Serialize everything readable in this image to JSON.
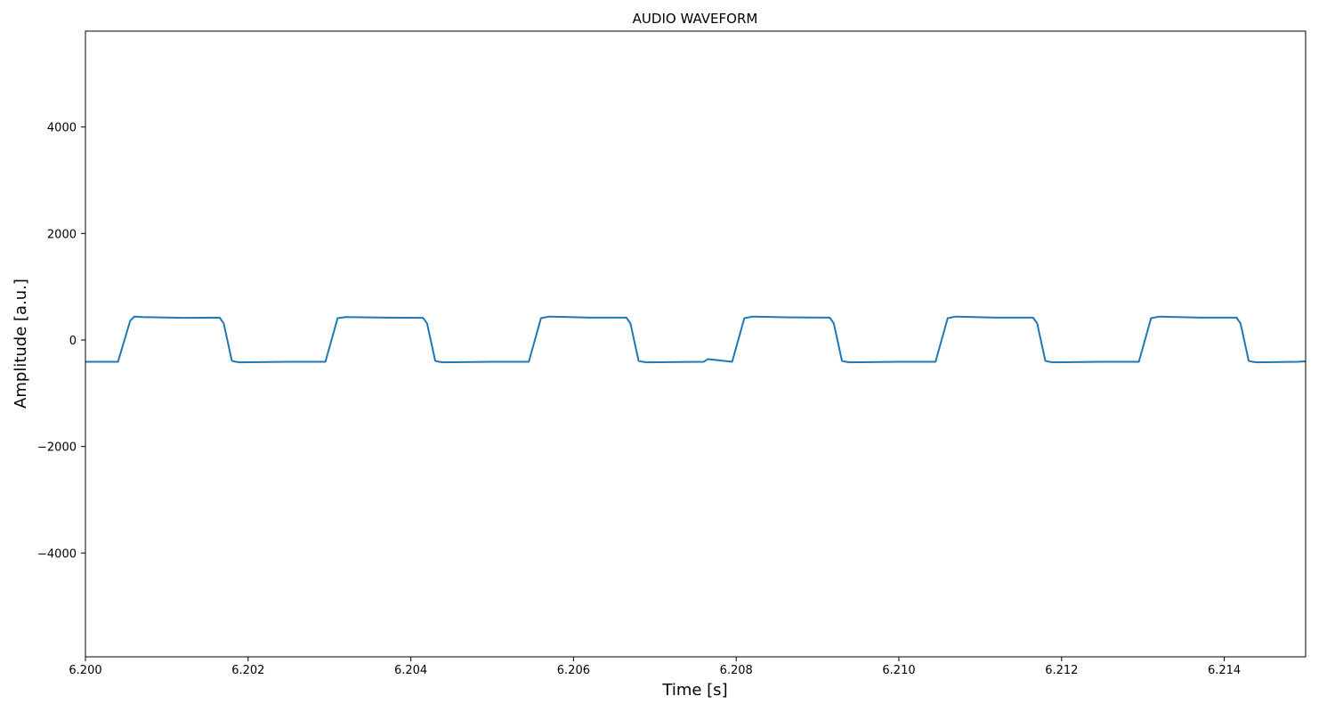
{
  "chart_data": {
    "type": "line",
    "title": "AUDIO WAVEFORM",
    "xlabel": "Time [s]",
    "ylabel": "Amplitude [a.u.]",
    "xlim": [
      6.2,
      6.215
    ],
    "ylim": [
      -5950,
      5800
    ],
    "x_ticks": [
      6.2,
      6.202,
      6.204,
      6.206,
      6.208,
      6.21,
      6.212,
      6.214
    ],
    "x_tick_labels": [
      "6.200",
      "6.202",
      "6.204",
      "6.206",
      "6.208",
      "6.210",
      "6.212",
      "6.214"
    ],
    "y_ticks": [
      -4000,
      -2000,
      0,
      2000,
      4000
    ],
    "y_tick_labels": [
      "−4000",
      "−2000",
      "0",
      "2000",
      "4000"
    ],
    "grid": false,
    "line_color": "#1f77b4",
    "series": [
      {
        "x": [
          6.2,
          6.2004,
          6.20055,
          6.2006,
          6.2007,
          6.2012,
          6.20165,
          6.2017,
          6.2018,
          6.20185,
          6.2019,
          6.2025,
          6.20295,
          6.2031,
          6.2032,
          6.2037,
          6.20415,
          6.2042,
          6.2043,
          6.20435,
          6.2044,
          6.205,
          6.20545,
          6.2056,
          6.2057,
          6.2062,
          6.20665,
          6.2067,
          6.2068,
          6.20685,
          6.2069,
          6.2076,
          6.20765,
          6.20795,
          6.2081,
          6.2082,
          6.2087,
          6.20915,
          6.2092,
          6.2093,
          6.20935,
          6.2094,
          6.21,
          6.21045,
          6.2106,
          6.2107,
          6.2112,
          6.21165,
          6.2117,
          6.2118,
          6.21185,
          6.2119,
          6.2125,
          6.21295,
          6.2131,
          6.2132,
          6.2137,
          6.21415,
          6.2142,
          6.2143,
          6.21435,
          6.2144,
          6.2149,
          6.215
        ],
        "y": [
          -410,
          -410,
          360,
          440,
          430,
          415,
          420,
          310,
          -390,
          -410,
          -420,
          -410,
          -410,
          410,
          430,
          420,
          415,
          310,
          -390,
          -410,
          -420,
          -410,
          -410,
          410,
          440,
          420,
          420,
          310,
          -390,
          -410,
          -420,
          -410,
          -360,
          -410,
          410,
          440,
          425,
          420,
          310,
          -390,
          -410,
          -420,
          -410,
          -410,
          410,
          440,
          420,
          420,
          310,
          -390,
          -410,
          -420,
          -410,
          -410,
          410,
          440,
          420,
          420,
          310,
          -390,
          -410,
          -420,
          -410,
          -400
        ]
      }
    ]
  }
}
